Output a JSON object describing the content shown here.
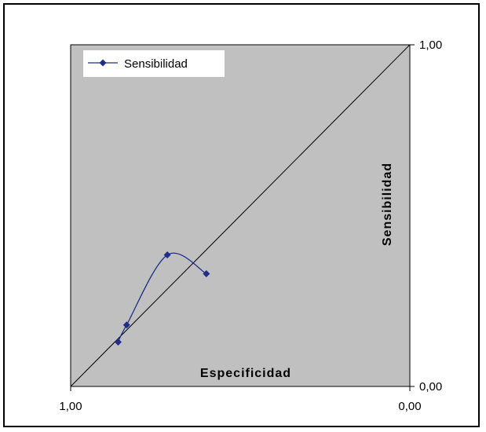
{
  "chart_data": {
    "type": "line",
    "xlabel": "Especificidad",
    "ylabel": "Sensibilidad",
    "x_axis": {
      "left_tick": "1,00",
      "right_tick": "0,00",
      "range": [
        1.0,
        0.0
      ],
      "reversed": true
    },
    "y_axis": {
      "top_tick": "1,00",
      "bottom_tick": "0,00",
      "range": [
        0.0,
        1.0
      ],
      "position": "right"
    },
    "grid": false,
    "legend": {
      "placement": "top-left"
    },
    "series": [
      {
        "name": "Sensibilidad",
        "color": "#1f2d8c",
        "marker": "diamond",
        "smooth": true,
        "x": [
          0.86,
          0.835,
          0.715,
          0.6
        ],
        "y": [
          0.13,
          0.18,
          0.385,
          0.33
        ]
      }
    ],
    "reference_line": {
      "from": [
        1.0,
        0.0
      ],
      "to": [
        0.0,
        1.0
      ],
      "color": "#000000"
    },
    "plot_background": "#c0c0c0"
  }
}
